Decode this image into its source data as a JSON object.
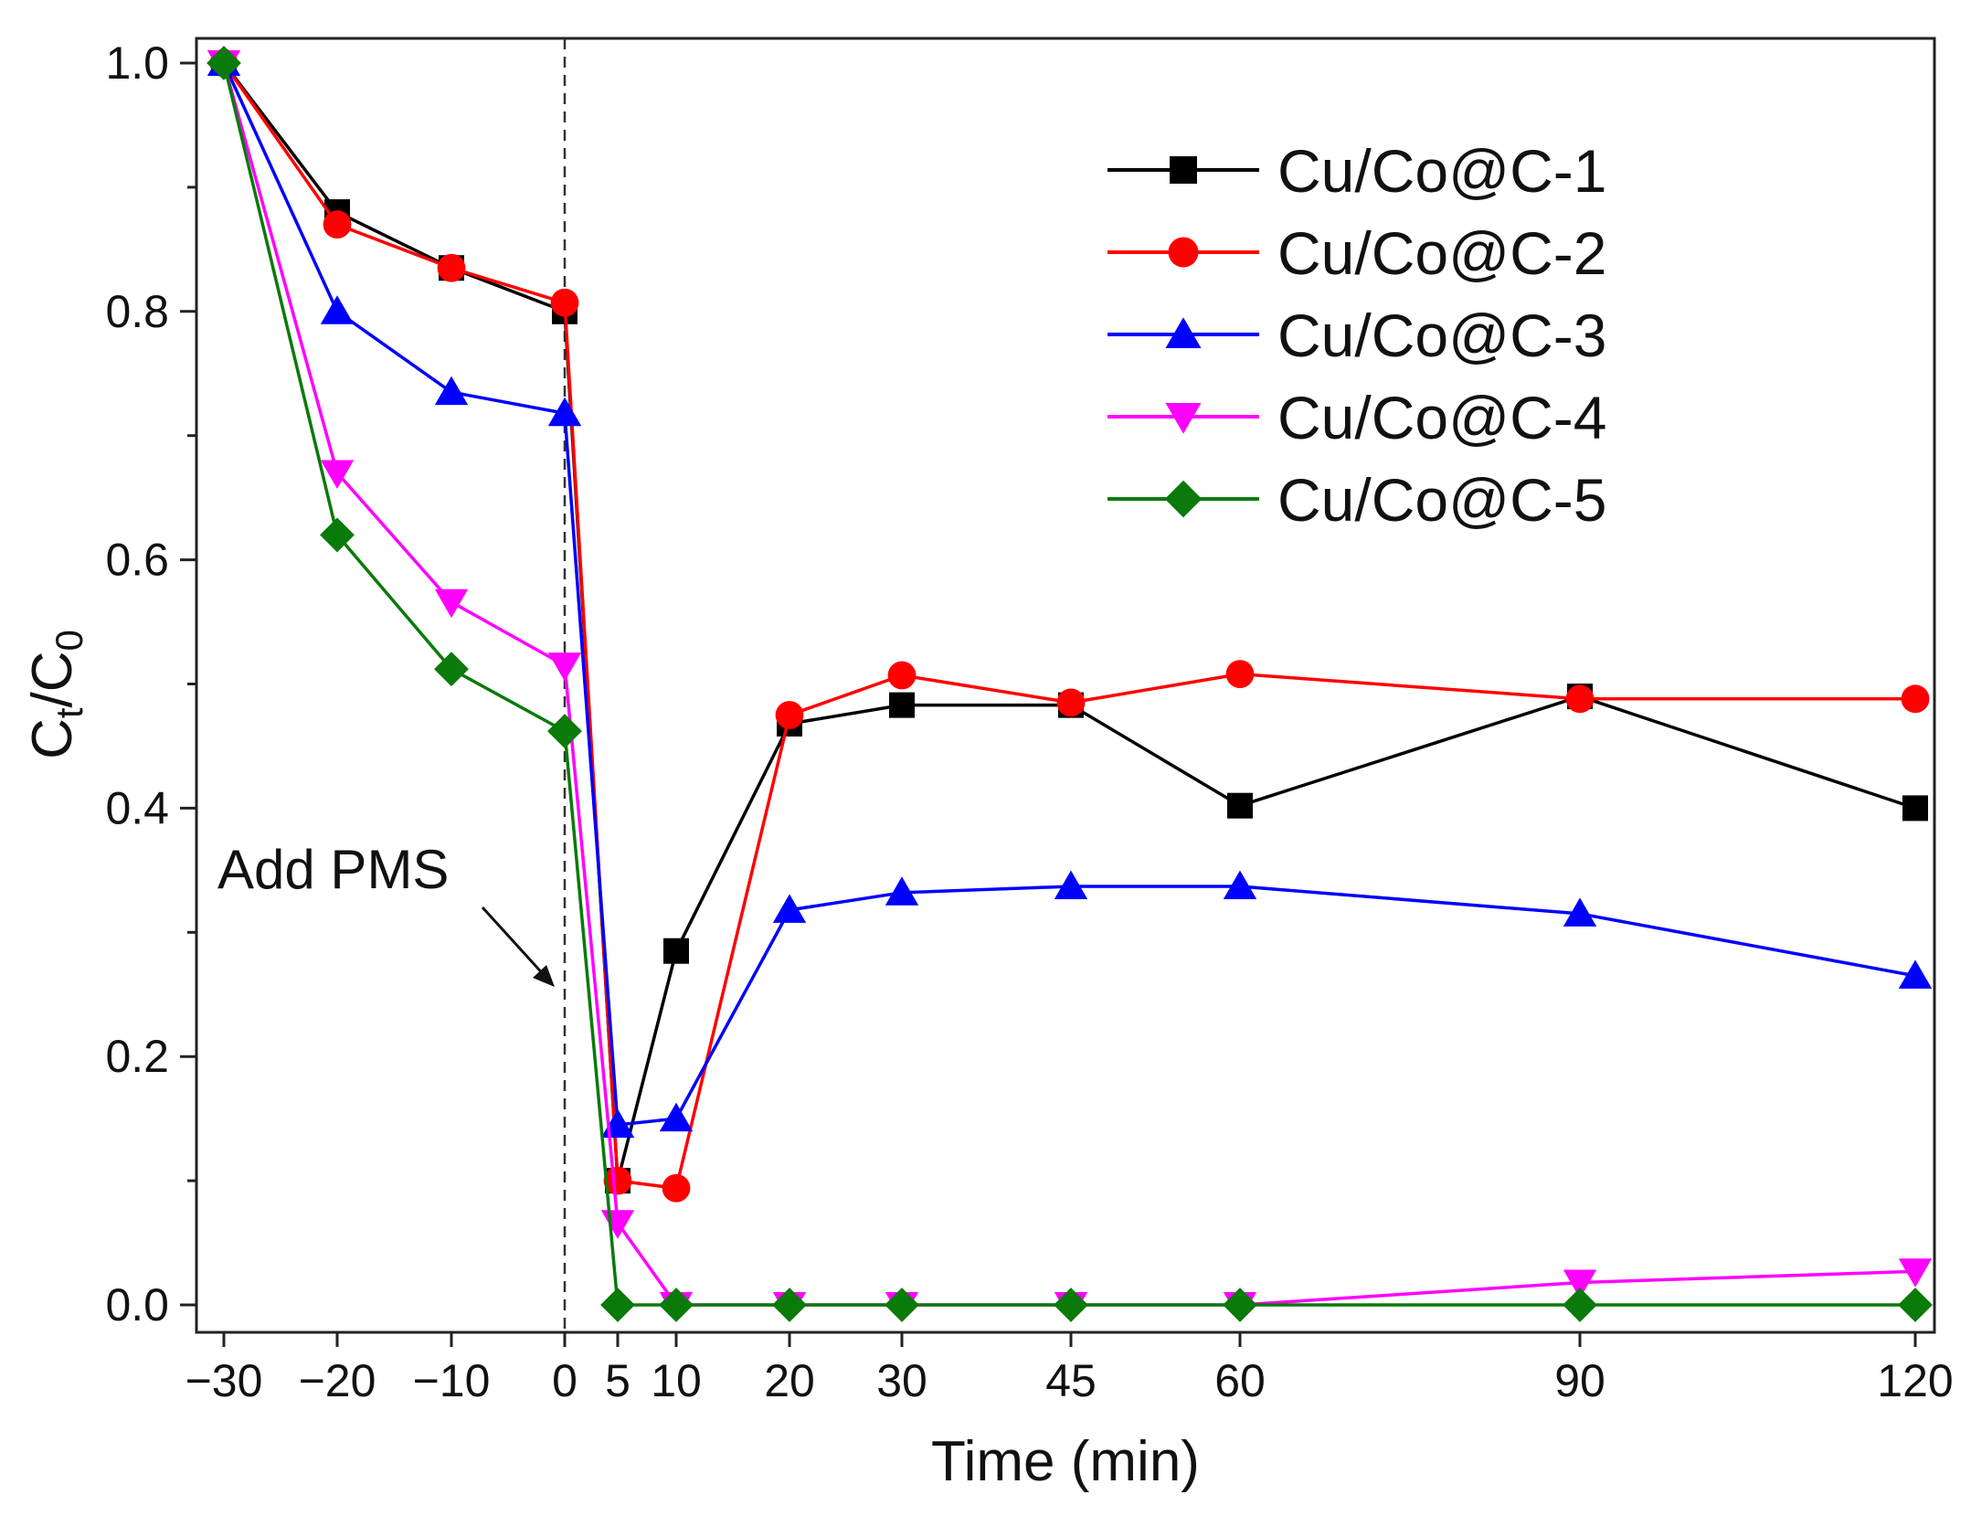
{
  "chart_data": {
    "type": "line",
    "title": "",
    "xlabel": "Time (min)",
    "ylabel": {
      "main": "C",
      "sub1": "t",
      "sep": "/C",
      "sub2": "0"
    },
    "x_positions": [
      -30,
      -20,
      -10,
      0,
      5,
      10,
      20,
      30,
      45,
      60,
      90,
      120
    ],
    "x_tick_labels": [
      "−30",
      "−20",
      "−10",
      "0",
      "5",
      "10",
      "20",
      "30",
      "45",
      "60",
      "90",
      "120"
    ],
    "y_ticks": [
      0.0,
      0.2,
      0.4,
      0.6,
      0.8,
      1.0
    ],
    "y_tick_labels": [
      "0.0",
      "0.2",
      "0.4",
      "0.6",
      "0.8",
      "1.0"
    ],
    "y_minor_ticks": [
      0.1,
      0.3,
      0.5,
      0.7,
      0.9
    ],
    "ylim": [
      -0.02,
      1.02
    ],
    "grid": false,
    "legend_position": "top-right",
    "annotation": {
      "text": "Add PMS",
      "points_to_x": 0
    },
    "vertical_line_x": 0,
    "series": [
      {
        "name": "Cu/Co@C-1",
        "color": "#000000",
        "marker": "square",
        "values": [
          1.0,
          0.88,
          0.835,
          0.8,
          0.1,
          0.285,
          0.468,
          0.483,
          0.483,
          0.402,
          0.49,
          0.4
        ]
      },
      {
        "name": "Cu/Co@C-2",
        "color": "#ff0000",
        "marker": "circle",
        "values": [
          1.0,
          0.87,
          0.835,
          0.807,
          0.1,
          0.094,
          0.475,
          0.507,
          0.485,
          0.508,
          0.488,
          0.488
        ]
      },
      {
        "name": "Cu/Co@C-3",
        "color": "#0000ff",
        "marker": "triangle-up",
        "values": [
          1.0,
          0.8,
          0.735,
          0.718,
          0.145,
          0.15,
          0.318,
          0.332,
          0.337,
          0.337,
          0.315,
          0.265
        ]
      },
      {
        "name": "Cu/Co@C-4",
        "color": "#ff00ff",
        "marker": "triangle-down",
        "values": [
          1.0,
          0.67,
          0.566,
          0.515,
          0.066,
          0.0,
          0.0,
          0.0,
          0.0,
          0.0,
          0.018,
          0.027
        ]
      },
      {
        "name": "Cu/Co@C-5",
        "color": "#0a7a0a",
        "marker": "diamond",
        "values": [
          1.0,
          0.62,
          0.512,
          0.462,
          0.0,
          0.0,
          0.0,
          0.0,
          0.0,
          0.0,
          0.0,
          0.0
        ]
      }
    ]
  }
}
